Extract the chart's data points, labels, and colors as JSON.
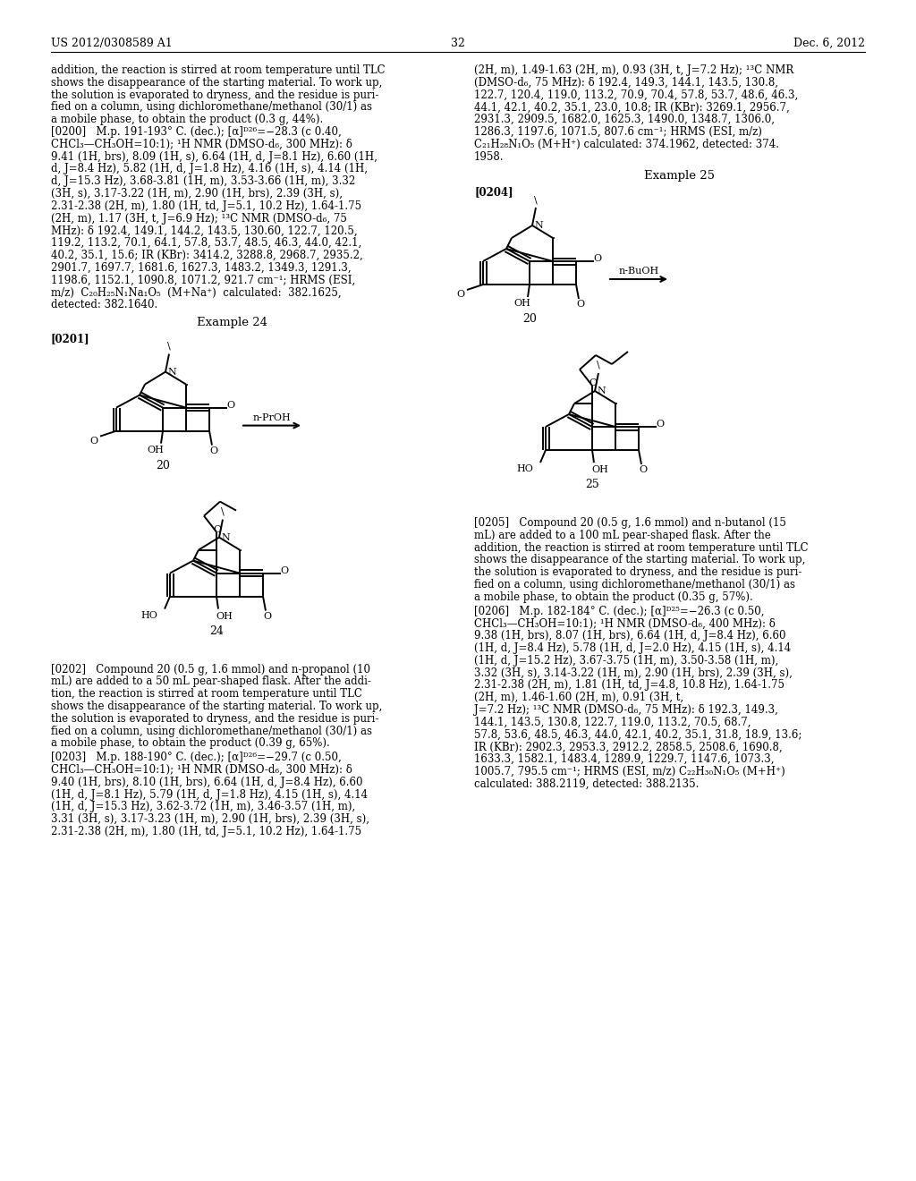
{
  "page_header_left": "US 2012/0308589 A1",
  "page_header_right": "Dec. 6, 2012",
  "page_number": "32",
  "background_color": "#ffffff",
  "left_col_lines": [
    "addition, the reaction is stirred at room temperature until TLC",
    "shows the disappearance of the starting material. To work up,",
    "the solution is evaporated to dryness, and the residue is puri-",
    "fied on a column, using dichloromethane/methanol (30/1) as",
    "a mobile phase, to obtain the product (0.3 g, 44%).",
    "[0200]   M.p. 191-193° C. (dec.); [α]ᴰ²⁶=−28.3 (c 0.40,",
    "CHCl₃—CH₃OH=10:1); ¹H NMR (DMSO-d₆, 300 MHz): δ",
    "9.41 (1H, brs), 8.09 (1H, s), 6.64 (1H, d, J=8.1 Hz), 6.60 (1H,",
    "d, J=8.4 Hz), 5.82 (1H, d, J=1.8 Hz), 4.16 (1H, s), 4.14 (1H,",
    "d, J=15.3 Hz), 3.68-3.81 (1H, m), 3.53-3.66 (1H, m), 3.32",
    "(3H, s), 3.17-3.22 (1H, m), 2.90 (1H, brs), 2.39 (3H, s),",
    "2.31-2.38 (2H, m), 1.80 (1H, td, J=5.1, 10.2 Hz), 1.64-1.75",
    "(2H, m), 1.17 (3H, t, J=6.9 Hz); ¹³C NMR (DMSO-d₆, 75",
    "MHz): δ 192.4, 149.1, 144.2, 143.5, 130.60, 122.7, 120.5,",
    "119.2, 113.2, 70.1, 64.1, 57.8, 53.7, 48.5, 46.3, 44.0, 42.1,",
    "40.2, 35.1, 15.6; IR (KBr): 3414.2, 3288.8, 2968.7, 2935.2,",
    "2901.7, 1697.7, 1681.6, 1627.3, 1483.2, 1349.3, 1291.3,",
    "1198.6, 1152.1, 1090.8, 1071.2, 921.7 cm⁻¹; HRMS (ESI,",
    "m/z)  C₂₀H₂₅N₁Na₁O₅  (M+Na⁺)  calculated:  382.1625,",
    "detected: 382.1640."
  ],
  "right_col_top_lines": [
    "(2H, m), 1.49-1.63 (2H, m), 0.93 (3H, t, J=7.2 Hz); ¹³C NMR",
    "(DMSO-d₆, 75 MHz): δ 192.4, 149.3, 144.1, 143.5, 130.8,",
    "122.7, 120.4, 119.0, 113.2, 70.9, 70.4, 57.8, 53.7, 48.6, 46.3,",
    "44.1, 42.1, 40.2, 35.1, 23.0, 10.8; IR (KBr): 3269.1, 2956.7,",
    "2931.3, 2909.5, 1682.0, 1625.3, 1490.0, 1348.7, 1306.0,",
    "1286.3, 1197.6, 1071.5, 807.6 cm⁻¹; HRMS (ESI, m/z)",
    "C₂₁H₂₈N₁O₅ (M+H⁺) calculated: 374.1962, detected: 374.",
    "1958."
  ],
  "example24_label": "Example 24",
  "example25_label": "Example 25",
  "para0201_label": "[0201]",
  "para0204_label": "[0204]",
  "para0202_lines": [
    "[0202]   Compound 20 (0.5 g, 1.6 mmol) and n-propanol (10",
    "mL) are added to a 50 mL pear-shaped flask. After the addi-",
    "tion, the reaction is stirred at room temperature until TLC",
    "shows the disappearance of the starting material. To work up,",
    "the solution is evaporated to dryness, and the residue is puri-",
    "fied on a column, using dichloromethane/methanol (30/1) as",
    "a mobile phase, to obtain the product (0.39 g, 65%)."
  ],
  "para0203_lines": [
    "[0203]   M.p. 188-190° C. (dec.); [α]ᴰ²⁶=−29.7 (c 0.50,",
    "CHCl₃—CH₃OH=10:1); ¹H NMR (DMSO-d₆, 300 MHz): δ",
    "9.40 (1H, brs), 8.10 (1H, brs), 6.64 (1H, d, J=8.4 Hz), 6.60",
    "(1H, d, J=8.1 Hz), 5.79 (1H, d, J=1.8 Hz), 4.15 (1H, s), 4.14",
    "(1H, d, J=15.3 Hz), 3.62-3.72 (1H, m), 3.46-3.57 (1H, m),",
    "3.31 (3H, s), 3.17-3.23 (1H, m), 2.90 (1H, brs), 2.39 (3H, s),",
    "2.31-2.38 (2H, m), 1.80 (1H, td, J=5.1, 10.2 Hz), 1.64-1.75"
  ],
  "para0205_lines": [
    "[0205]   Compound 20 (0.5 g, 1.6 mmol) and n-butanol (15",
    "mL) are added to a 100 mL pear-shaped flask. After the",
    "addition, the reaction is stirred at room temperature until TLC",
    "shows the disappearance of the starting material. To work up,",
    "the solution is evaporated to dryness, and the residue is puri-",
    "fied on a column, using dichloromethane/methanol (30/1) as",
    "a mobile phase, to obtain the product (0.35 g, 57%)."
  ],
  "para0206_lines": [
    "[0206]   M.p. 182-184° C. (dec.); [α]ᴰ²⁵=−26.3 (c 0.50,",
    "CHCl₃—CH₃OH=10:1); ¹H NMR (DMSO-d₆, 400 MHz): δ",
    "9.38 (1H, brs), 8.07 (1H, brs), 6.64 (1H, d, J=8.4 Hz), 6.60",
    "(1H, d, J=8.4 Hz), 5.78 (1H, d, J=2.0 Hz), 4.15 (1H, s), 4.14",
    "(1H, d, J=15.2 Hz), 3.67-3.75 (1H, m), 3.50-3.58 (1H, m),",
    "3.32 (3H, s), 3.14-3.22 (1H, m), 2.90 (1H, brs), 2.39 (3H, s),",
    "2.31-2.38 (2H, m), 1.81 (1H, td, J=4.8, 10.8 Hz), 1.64-1.75",
    "(2H, m), 1.46-1.60 (2H, m), 0.91 (3H, t,",
    "J=7.2 Hz); ¹³C NMR (DMSO-d₆, 75 MHz): δ 192.3, 149.3,",
    "144.1, 143.5, 130.8, 122.7, 119.0, 113.2, 70.5, 68.7,",
    "57.8, 53.6, 48.5, 46.3, 44.0, 42.1, 40.2, 35.1, 31.8, 18.9, 13.6;",
    "IR (KBr): 2902.3, 2953.3, 2912.2, 2858.5, 2508.6, 1690.8,",
    "1633.3, 1582.1, 1483.4, 1289.9, 1229.7, 1147.6, 1073.3,",
    "1005.7, 795.5 cm⁻¹; HRMS (ESI, m/z) C₂₂H₃₀N₁O₅ (M+H⁺)",
    "calculated: 388.2119, detected: 388.2135."
  ]
}
